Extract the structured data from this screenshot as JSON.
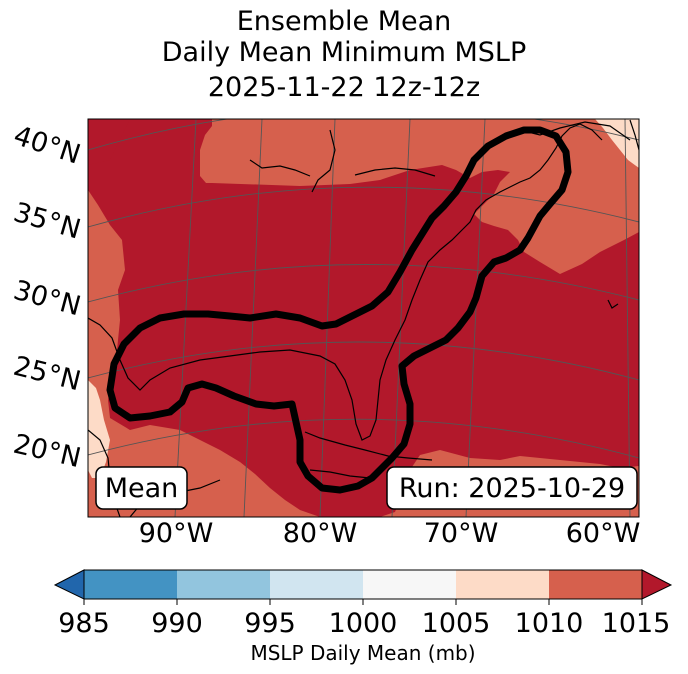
{
  "title": {
    "line1": "Ensemble Mean",
    "line2": "Daily Mean Minimum MSLP",
    "line3": "2025-11-22 12z-12z"
  },
  "map": {
    "lat_labels": [
      "40°N",
      "35°N",
      "30°N",
      "25°N",
      "20°N"
    ],
    "lon_labels": [
      "90°W",
      "80°W",
      "70°W",
      "60°W"
    ],
    "mean_box": "Mean",
    "run_box": "Run: 2025-10-29",
    "colors": {
      "c1005_1010": "#fddbc7",
      "c1010_1015": "#d6604d",
      "c_above_1015": "#b2182b",
      "contour": "#000000",
      "graticule": "#555555"
    }
  },
  "colorbar": {
    "ticks": [
      "985",
      "990",
      "995",
      "1000",
      "1005",
      "1010",
      "1015"
    ],
    "label": "MSLP Daily Mean (mb)",
    "colors": [
      "#2166ac",
      "#4393c3",
      "#92c5de",
      "#d1e5f0",
      "#f7f7f7",
      "#fddbc7",
      "#d6604d",
      "#b2182b"
    ]
  }
}
